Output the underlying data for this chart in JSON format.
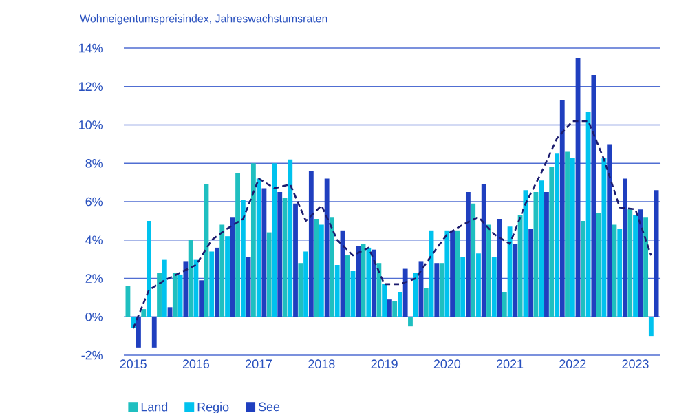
{
  "chart_data": {
    "type": "bar",
    "title": "Wohneigentumspreisindex, Jahreswachstumsraten",
    "x": [
      2015,
      2015.25,
      2015.5,
      2015.75,
      2016,
      2016.25,
      2016.5,
      2016.75,
      2017,
      2017.25,
      2017.5,
      2017.75,
      2018,
      2018.25,
      2018.5,
      2018.75,
      2019,
      2019.25,
      2019.5,
      2019.75,
      2020,
      2020.25,
      2020.5,
      2020.75,
      2021,
      2021.25,
      2021.5,
      2021.75,
      2022,
      2022.25,
      2022.5,
      2022.75,
      2023,
      2023.25
    ],
    "series": [
      {
        "name": "Land",
        "color": "#1fbfc0",
        "values": [
          1.6,
          0.4,
          2.3,
          2.3,
          4.0,
          6.9,
          4.8,
          7.5,
          8.0,
          4.4,
          6.2,
          2.8,
          5.1,
          5.2,
          3.2,
          3.8,
          2.8,
          0.8,
          -0.5,
          1.5,
          2.8,
          4.5,
          5.9,
          4.8,
          1.3,
          5.3,
          6.5,
          7.8,
          8.6,
          5.0,
          5.4,
          4.8,
          5.6,
          5.2
        ]
      },
      {
        "name": "Regio",
        "color": "#00c2ee",
        "values": [
          -0.6,
          5.0,
          3.0,
          2.2,
          3.0,
          3.4,
          4.2,
          6.1,
          7.2,
          8.0,
          8.2,
          3.4,
          4.8,
          2.7,
          2.4,
          3.6,
          1.7,
          1.3,
          2.3,
          4.5,
          4.5,
          3.1,
          3.3,
          3.1,
          4.7,
          6.6,
          7.1,
          8.5,
          8.3,
          10.7,
          8.3,
          4.6,
          5.3,
          -1.0
        ]
      },
      {
        "name": "See",
        "color": "#1f3fbf",
        "values": [
          -1.6,
          -1.6,
          0.5,
          2.9,
          1.9,
          3.6,
          5.2,
          3.1,
          6.7,
          6.5,
          5.9,
          7.6,
          7.2,
          4.5,
          3.7,
          3.5,
          0.9,
          2.5,
          2.9,
          2.8,
          4.5,
          6.5,
          6.9,
          5.1,
          3.8,
          4.6,
          6.5,
          11.3,
          13.5,
          12.6,
          9.0,
          7.2,
          5.6,
          6.6
        ]
      },
      {
        "type": "line",
        "line_style": "dashed",
        "color": "#1c1c6e",
        "values": [
          -0.6,
          1.4,
          1.9,
          2.3,
          2.7,
          4.0,
          4.6,
          5.1,
          7.2,
          6.7,
          6.9,
          5.0,
          5.8,
          4.0,
          3.2,
          3.6,
          1.7,
          1.7,
          2.0,
          3.2,
          4.3,
          4.8,
          5.2,
          4.3,
          3.8,
          5.9,
          7.5,
          9.3,
          10.2,
          10.2,
          8.2,
          5.7,
          5.6,
          3.2
        ]
      }
    ],
    "xlim": [
      2014.85,
      2023.4
    ],
    "xticks": [
      2015,
      2016,
      2017,
      2018,
      2019,
      2020,
      2021,
      2022,
      2023
    ],
    "ylim": [
      -2,
      14
    ],
    "yticks": [
      {
        "value": -2,
        "label": "-2%"
      },
      {
        "value": 0,
        "label": "0%"
      },
      {
        "value": 2,
        "label": "2%"
      },
      {
        "value": 4,
        "label": "4%"
      },
      {
        "value": 6,
        "label": "6%"
      },
      {
        "value": 8,
        "label": "8%"
      },
      {
        "value": 10,
        "label": "10%"
      },
      {
        "value": 12,
        "label": "12%"
      },
      {
        "value": 14,
        "label": "14%"
      }
    ],
    "grid": "y",
    "legend": "bottom left"
  }
}
